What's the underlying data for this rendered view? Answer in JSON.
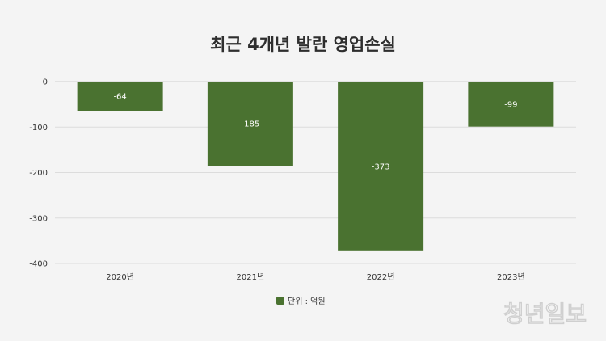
{
  "chart_data": {
    "type": "bar",
    "title": "최근 4개년 발란 영업손실",
    "categories": [
      "2020년",
      "2021년",
      "2022년",
      "2023년"
    ],
    "values": [
      -64,
      -185,
      -373,
      -99
    ],
    "value_labels": [
      "-64",
      "-185",
      "-373",
      "-99"
    ],
    "y_ticks": [
      "0",
      "-100",
      "-200",
      "-300",
      "-400"
    ],
    "y_tick_values": [
      0,
      -100,
      -200,
      -300,
      -400
    ],
    "ylim": [
      -400,
      0
    ],
    "grid": true,
    "legend": {
      "label": "단위 : 억원",
      "placement": "bottom"
    },
    "bar_color": "#4a7230"
  },
  "watermark": "청년일보"
}
